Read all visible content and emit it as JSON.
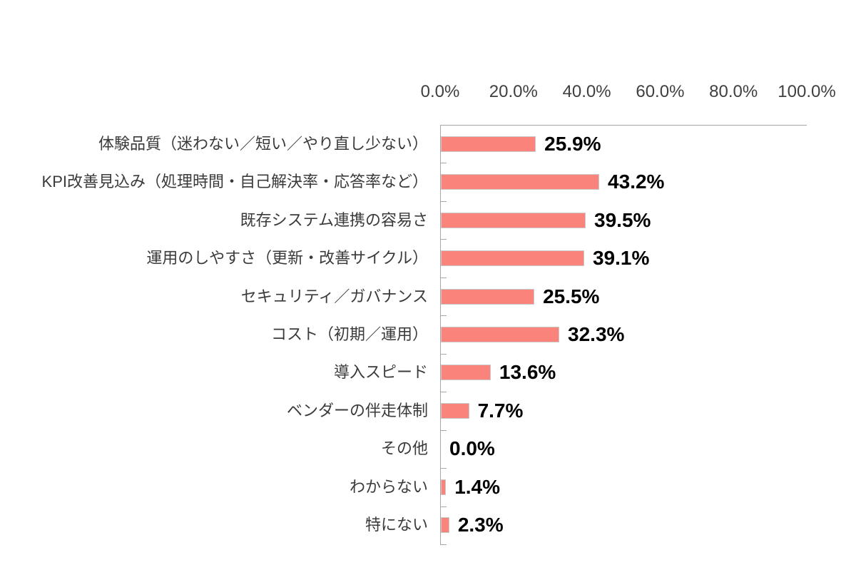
{
  "chart_data": {
    "type": "bar",
    "orientation": "horizontal",
    "title": "",
    "xlabel": "",
    "ylabel": "",
    "xlim": [
      0,
      100
    ],
    "grid": false,
    "legend": false,
    "axis_ticks": [
      "0.0%",
      "20.0%",
      "40.0%",
      "60.0%",
      "80.0%",
      "100.0%"
    ],
    "axis_tick_values": [
      0,
      20,
      40,
      60,
      80,
      100
    ],
    "categories": [
      "体験品質（迷わない／短い／やり直し少ない）",
      "KPI改善見込み（処理時間・自己解決率・応答率など）",
      "既存システム連携の容易さ",
      "運用のしやすさ（更新・改善サイクル）",
      "セキュリティ／ガバナンス",
      "コスト（初期／運用）",
      "導入スピード",
      "ベンダーの伴走体制",
      "その他",
      "わからない",
      "特にない"
    ],
    "values": [
      25.9,
      43.2,
      39.5,
      39.1,
      25.5,
      32.3,
      13.6,
      7.7,
      0.0,
      1.4,
      2.3
    ],
    "value_labels": [
      "25.9%",
      "43.2%",
      "39.5%",
      "39.1%",
      "25.5%",
      "32.3%",
      "13.6%",
      "7.7%",
      "0.0%",
      "1.4%",
      "2.3%"
    ],
    "colors": {
      "bar_fill": "#FA837B",
      "bar_border": "#CBC8C8",
      "axis_line": "#A6A6A6",
      "value_label_color": "#000000",
      "category_label_color": "#3A3A3A",
      "axis_label_color": "#404040",
      "background": "#FFFFFF"
    }
  }
}
